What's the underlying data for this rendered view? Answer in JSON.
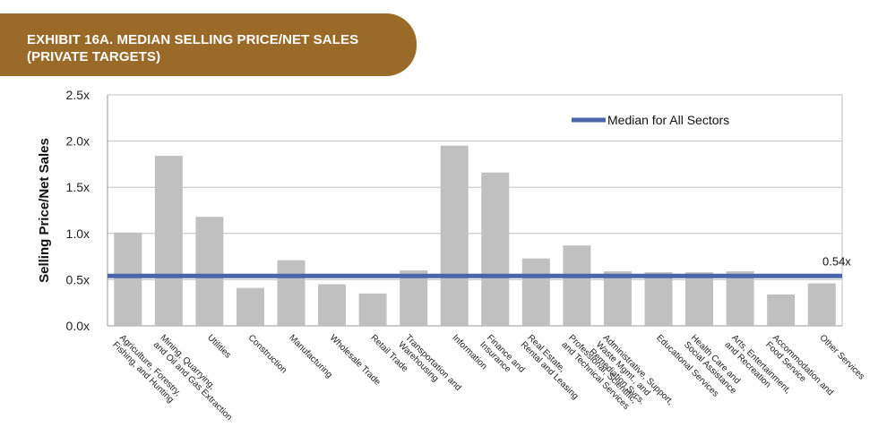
{
  "header": {
    "title_line1": "EXHIBIT 16A. MEDIAN SELLING PRICE/NET SALES",
    "title_line2": "(PRIVATE TARGETS)"
  },
  "chart_data": {
    "type": "bar",
    "ylabel": "Selling Price/Net Sales",
    "xlabel": "",
    "ylim": [
      0,
      2.5
    ],
    "yticks": [
      "0.0x",
      "0.5x",
      "1.0x",
      "1.5x",
      "2.0x",
      "2.5x"
    ],
    "grid": true,
    "categories": [
      [
        "Agriculture, Forestry,",
        "Fishing, and Hunting"
      ],
      [
        "Mining, Quarrying,",
        "and Oil and Gas Extraction"
      ],
      [
        "Utilities"
      ],
      [
        "Construction"
      ],
      [
        "Manufacturing"
      ],
      [
        "Wholesale Trade"
      ],
      [
        "Retail Trade"
      ],
      [
        "Transportation and",
        "Warehousing"
      ],
      [
        "Information"
      ],
      [
        "Finance and",
        "Insurance"
      ],
      [
        "Real Estate,",
        "Rental and Leasing"
      ],
      [
        "Professional, Scientific,",
        "and Technical Services"
      ],
      [
        "Administrative, Support,",
        "Waste Mgmt., and",
        "Remediation Svcs."
      ],
      [
        "Educational Services"
      ],
      [
        "Health Care and",
        "Social Assistance"
      ],
      [
        "Arts, Entertainment,",
        "and Recreation"
      ],
      [
        "Accommodation and",
        "Food Service"
      ],
      [
        "Other Services"
      ]
    ],
    "values": [
      1.01,
      1.84,
      1.18,
      0.41,
      0.71,
      0.45,
      0.35,
      0.6,
      1.95,
      1.66,
      0.73,
      0.87,
      0.59,
      0.58,
      0.58,
      0.59,
      0.34,
      0.46
    ],
    "median": {
      "name": "Median for All Sectors",
      "value": 0.54,
      "label": "0.54x"
    },
    "legend_position": "top-right",
    "colors": {
      "bar": "#c0c0c0",
      "median_line": "#4a66a8",
      "grid": "#bfbfbf",
      "header": "#9a6a28"
    }
  }
}
